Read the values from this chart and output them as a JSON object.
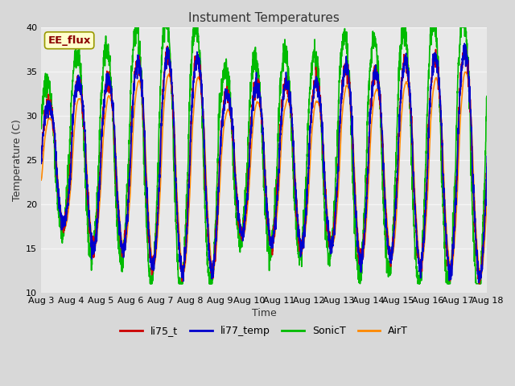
{
  "title": "Instument Temperatures",
  "xlabel": "Time",
  "ylabel": "Temperature (C)",
  "ylim": [
    10,
    40
  ],
  "xlim_days": [
    3,
    18
  ],
  "fig_bg_color": "#d8d8d8",
  "plot_bg_color": "#e8e8e8",
  "grid_color": "#f5f5f5",
  "series": {
    "li75_t": {
      "color": "#cc0000",
      "lw": 1.2
    },
    "li77_temp": {
      "color": "#0000cc",
      "lw": 1.2
    },
    "SonicT": {
      "color": "#00bb00",
      "lw": 1.2
    },
    "AirT": {
      "color": "#ff8800",
      "lw": 1.2
    }
  },
  "annotation_text": "EE_flux",
  "annotation_color": "#8b0000",
  "annotation_bg": "#ffffcc",
  "annotation_edge": "#999900",
  "tick_labels": [
    "Aug 3",
    "Aug 4",
    "Aug 5",
    "Aug 6",
    "Aug 7",
    "Aug 8",
    "Aug 9",
    "Aug 10",
    "Aug 11",
    "Aug 12",
    "Aug 13",
    "Aug 14",
    "Aug 15",
    "Aug 16",
    "Aug 17",
    "Aug 18"
  ],
  "tick_positions": [
    3,
    4,
    5,
    6,
    7,
    8,
    9,
    10,
    11,
    12,
    13,
    14,
    15,
    16,
    17,
    18
  ],
  "yticks": [
    10,
    15,
    20,
    25,
    30,
    35,
    40
  ],
  "num_points": 3000,
  "day_start": 3,
  "day_end": 18
}
